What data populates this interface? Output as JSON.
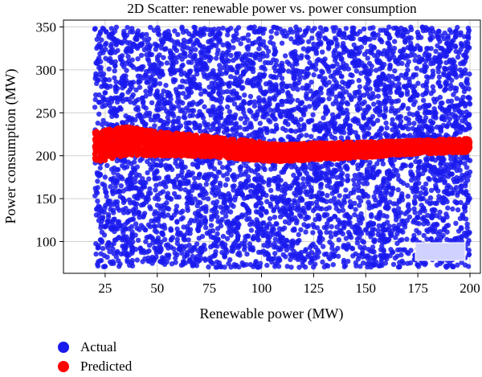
{
  "chart_data": {
    "type": "scatter",
    "title": "2D Scatter: renewable power vs. power consumption",
    "xlabel": "Renewable power (MW)",
    "ylabel": "Power consumption (MW)",
    "xlim": [
      5,
      205
    ],
    "ylim": [
      63,
      358
    ],
    "xticks": [
      25,
      50,
      75,
      100,
      125,
      150,
      175,
      200
    ],
    "yticks": [
      100,
      150,
      200,
      250,
      300,
      350
    ],
    "grid": true,
    "legend_position": "bottom-left, below plot",
    "series": [
      {
        "name": "Actual",
        "color": "#1a1aee",
        "distribution": "uniform",
        "x_range": [
          20,
          200
        ],
        "y_range": [
          70,
          350
        ]
      },
      {
        "name": "Predicted",
        "color": "#ff0000",
        "trend": {
          "x": [
            20,
            35,
            50,
            75,
            100,
            110,
            125,
            150,
            175,
            200
          ],
          "y_center": [
            210,
            217,
            214,
            211,
            205,
            203,
            205,
            207,
            210,
            212
          ],
          "half_width": [
            18,
            17,
            14,
            12,
            11,
            10,
            10,
            9,
            8,
            8
          ]
        }
      }
    ]
  }
}
